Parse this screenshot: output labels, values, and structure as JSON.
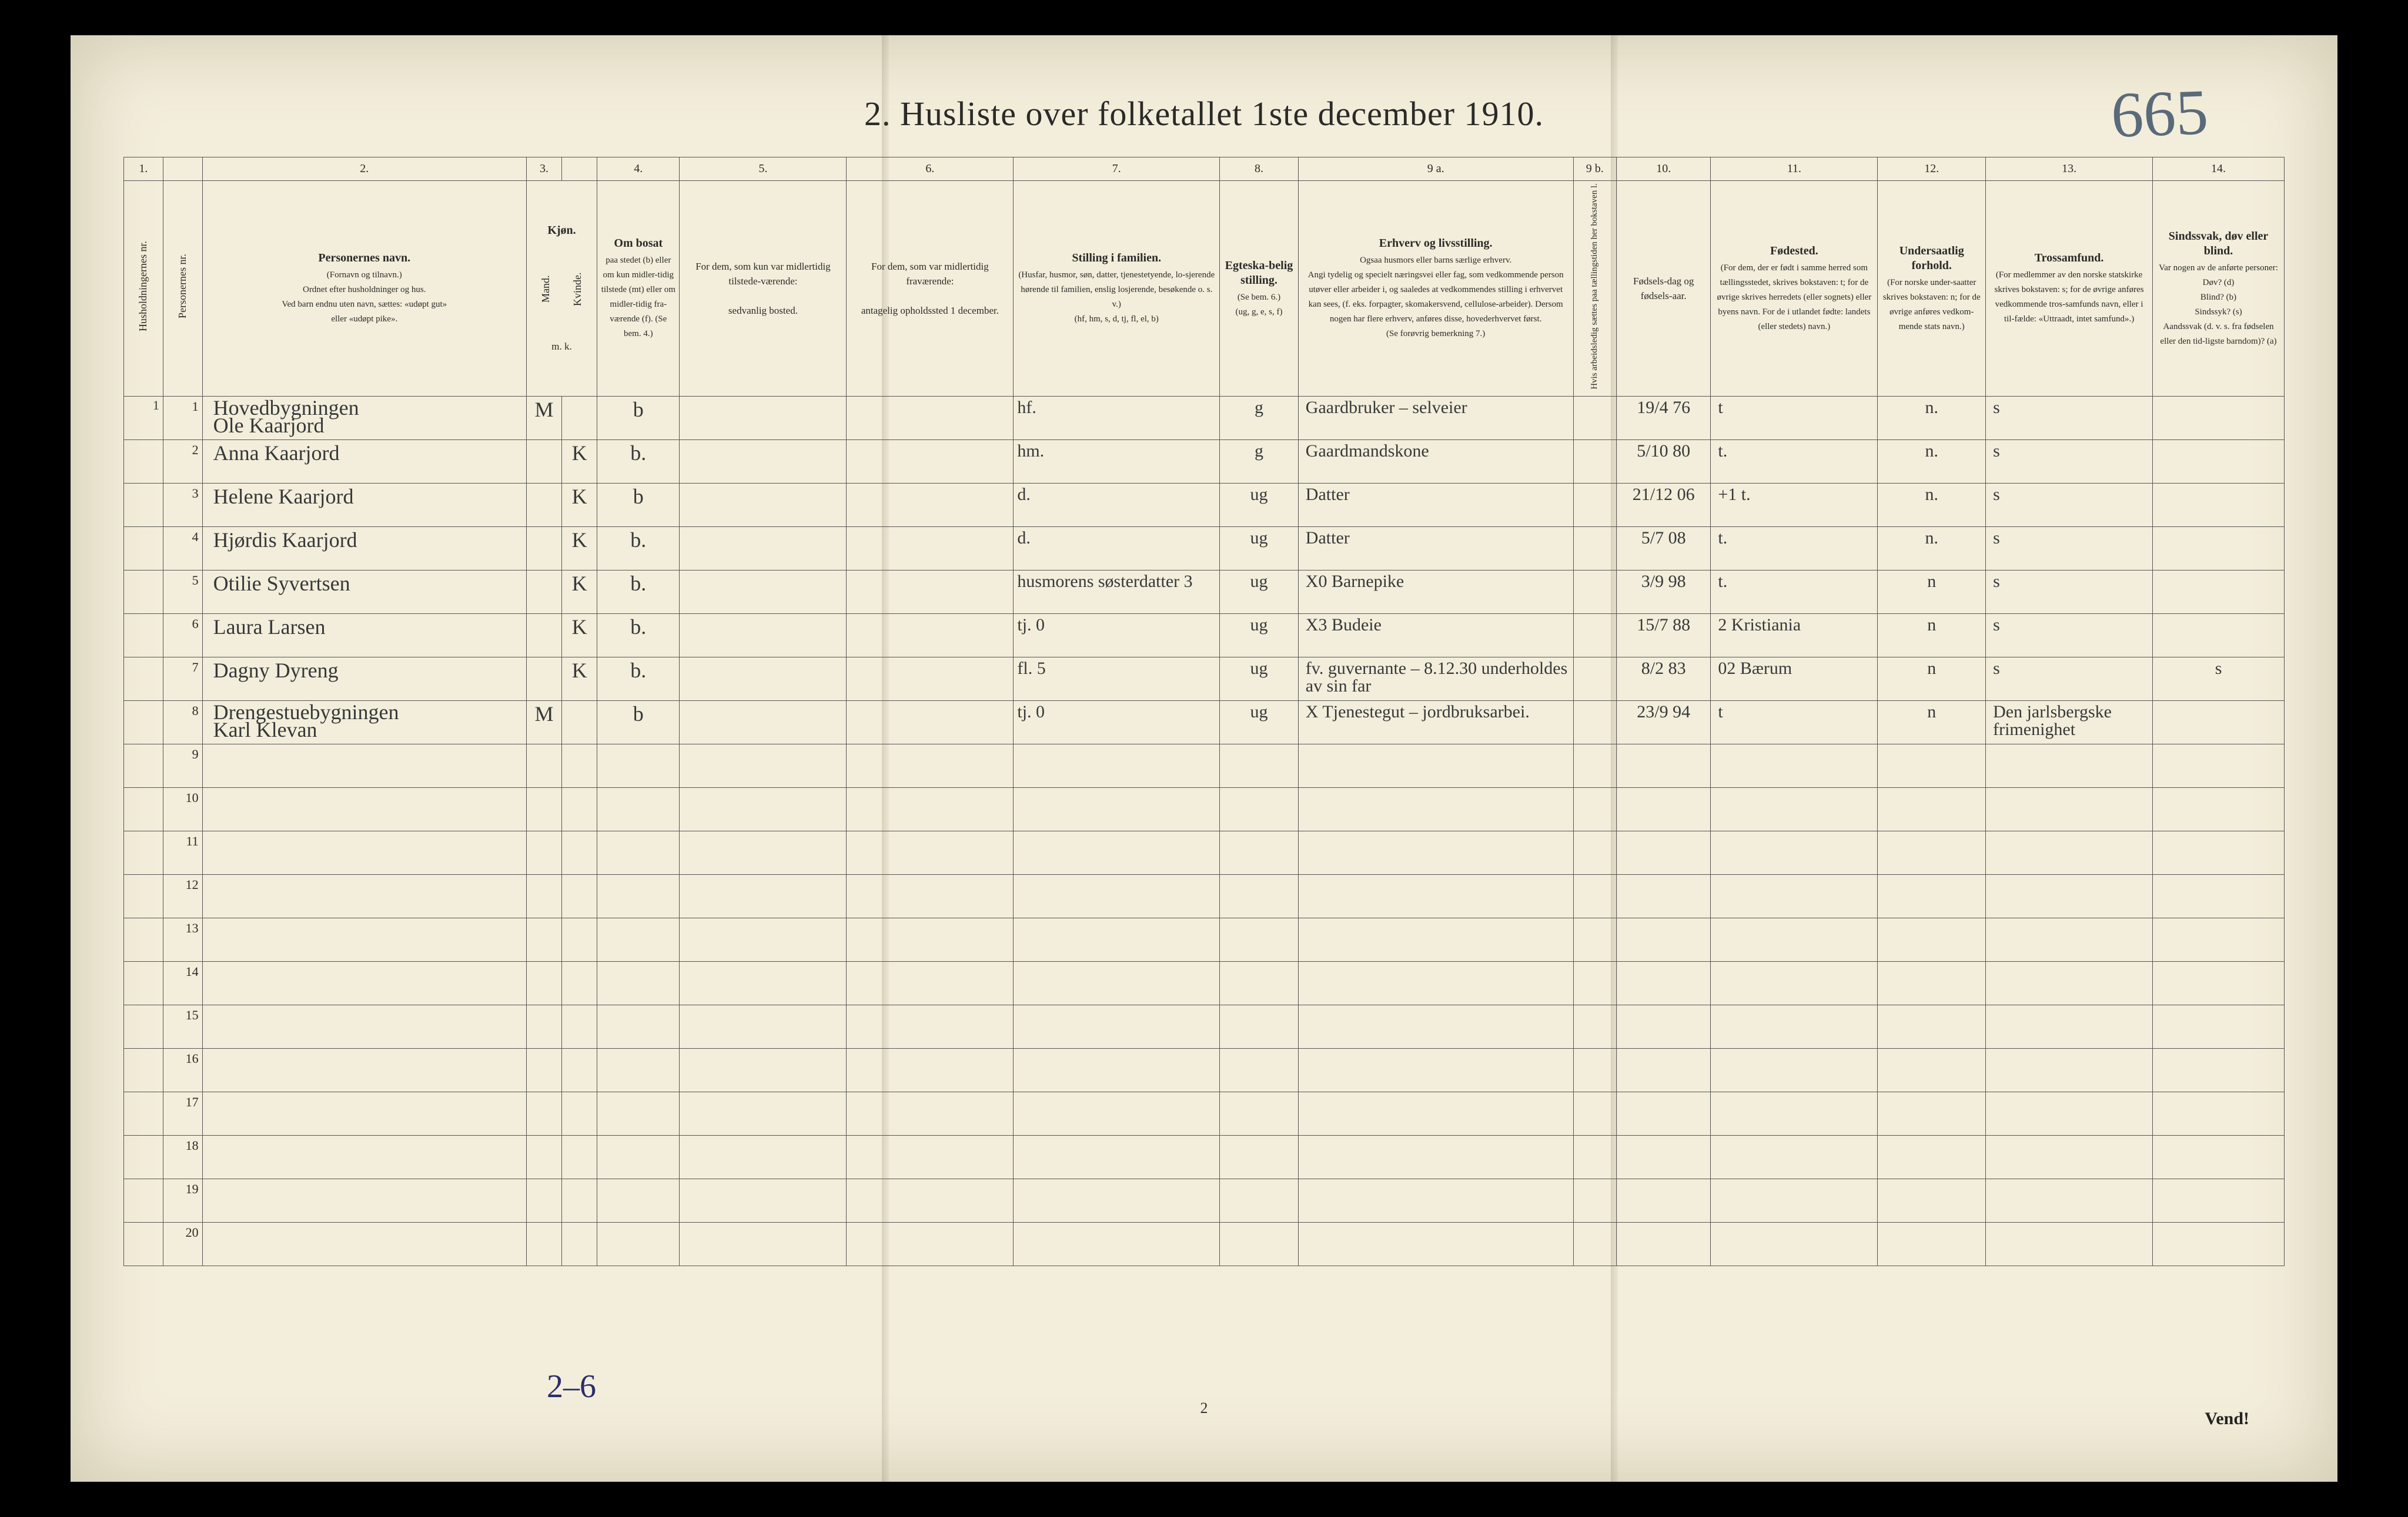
{
  "page": {
    "title": "2.  Husliste over folketallet 1ste december 1910.",
    "hand_page_number": "665",
    "footer_handnote": "2–6",
    "footer_printed_page": "2",
    "vend": "Vend!"
  },
  "colors": {
    "paper": "#f3eedb",
    "ink": "#2a2a28",
    "rule": "#555",
    "handwriting": "#36393a",
    "blue_ink": "#2a2d6a",
    "pencil": "#5a6a7a",
    "background": "#000000"
  },
  "columns": {
    "widths_pct": [
      2.0,
      2.0,
      16.5,
      1.8,
      1.8,
      4.2,
      8.5,
      8.5,
      10.5,
      4.0,
      14.0,
      2.2,
      4.8,
      8.5,
      5.5,
      8.5,
      6.7
    ],
    "numbers": [
      "1.",
      "",
      "2.",
      "3.",
      "",
      "4.",
      "5.",
      "6.",
      "7.",
      "8.",
      "9 a.",
      "9 b.",
      "10.",
      "11.",
      "12.",
      "13.",
      "14."
    ],
    "head_hush": "Husholdningernes nr.",
    "head_pers": "Personernes nr.",
    "head_name_title": "Personernes navn.",
    "head_name_body": "(Fornavn og tilnavn.)\nOrdnet efter husholdninger og hus.\nVed barn endnu uten navn, sættes: «udøpt gut»\neller «udøpt pike».",
    "head_kjon": "Kjøn.",
    "head_kjon_m": "Mand.",
    "head_kjon_k": "Kvinde.",
    "head_kjon_mk": "m.  k.",
    "head_bosat_title": "Om bosat",
    "head_bosat_body": "paa stedet (b) eller om kun midler-tidig tilstede (mt) eller om midler-tidig fra-værende (f). (Se bem. 4.)",
    "head_col5_title": "For dem, som kun var midlertidig tilstede-værende:",
    "head_col5_body": "sedvanlig bosted.",
    "head_col6_title": "For dem, som var midlertidig fraværende:",
    "head_col6_body": "antagelig opholdssted 1 december.",
    "head_col7_title": "Stilling i familien.",
    "head_col7_body": "(Husfar, husmor, søn, datter, tjenestetyende, lo-sjerende hørende til familien, enslig losjerende, besøkende o. s. v.)\n(hf, hm, s, d, tj, fl, el, b)",
    "head_col8_title": "Egteska-belig stilling.",
    "head_col8_body": "(Se bem. 6.)\n(ug, g, e, s, f)",
    "head_col9a_title": "Erhverv og livsstilling.",
    "head_col9a_body": "Ogsaa husmors eller barns særlige erhverv.\nAngi tydelig og specielt næringsvei eller fag, som vedkommende person utøver eller arbeider i, og saaledes at vedkommendes stilling i erhvervet kan sees, (f. eks. forpagter, skomakersvend, cellulose-arbeider). Dersom nogen har flere erhverv, anføres disse, hovederhvervet først.\n(Se forøvrig bemerkning 7.)",
    "head_col9b": "Hvis arbeidsledig sættes paa tællingstiden her bokstaven l.",
    "head_col10_title": "Fødsels-dag og fødsels-aar.",
    "head_col11_title": "Fødested.",
    "head_col11_body": "(For dem, der er født i samme herred som tællingsstedet, skrives bokstaven: t; for de øvrige skrives herredets (eller sognets) eller byens navn. For de i utlandet fødte: landets (eller stedets) navn.)",
    "head_col12_title": "Undersaatlig forhold.",
    "head_col12_body": "(For norske under-saatter skrives bokstaven: n; for de øvrige anføres vedkom-mende stats navn.)",
    "head_col13_title": "Trossamfund.",
    "head_col13_body": "(For medlemmer av den norske statskirke skrives bokstaven: s; for de øvrige anføres vedkommende tros-samfunds navn, eller i til-fælde: «Uttraadt, intet samfund».)",
    "head_col14_title": "Sindssvak, døv eller blind.",
    "head_col14_body": "Var nogen av de anførte personer:\nDøv?        (d)\nBlind?      (b)\nSindssyk? (s)\nAandssvak (d. v. s. fra fødselen eller den tid-ligste barndom)? (a)"
  },
  "rows": [
    {
      "hush": "1",
      "pers": "1",
      "pre": "Hovedbygningen",
      "name": "Ole Kaarjord",
      "sex": "M",
      "bosat": "b",
      "c5": "",
      "c6": "",
      "c7": "hf.",
      "c8": "g",
      "c9a": "Gaardbruker – selveier",
      "c9b": "",
      "c10": "19/4 76",
      "c11": "t",
      "c12": "n.",
      "c13": "s",
      "c14": ""
    },
    {
      "hush": "",
      "pers": "2",
      "name": "Anna Kaarjord",
      "sex": "K",
      "bosat": "b.",
      "c5": "",
      "c6": "",
      "c7": "hm.",
      "c8": "g",
      "c9a": "Gaardmandskone",
      "c9b": "",
      "c10": "5/10 80",
      "c11": "t.",
      "c12": "n.",
      "c13": "s",
      "c14": ""
    },
    {
      "hush": "",
      "pers": "3",
      "name": "Helene Kaarjord",
      "sex": "K",
      "bosat": "b",
      "c5": "",
      "c6": "",
      "c7": "d.",
      "c8": "ug",
      "c9a": "Datter",
      "c9b": "",
      "c10": "21/12 06",
      "c11": "+1  t.",
      "c12": "n.",
      "c13": "s",
      "c14": ""
    },
    {
      "hush": "",
      "pers": "4",
      "name": "Hjørdis Kaarjord",
      "sex": "K",
      "bosat": "b.",
      "c5": "",
      "c6": "",
      "c7": "d.",
      "c8": "ug",
      "c9a": "Datter",
      "c9b": "",
      "c10": "5/7 08",
      "c11": "t.",
      "c12": "n.",
      "c13": "s",
      "c14": ""
    },
    {
      "hush": "",
      "pers": "5",
      "name": "Otilie Syvertsen",
      "sex": "K",
      "bosat": "b.",
      "c5": "",
      "c6": "",
      "c7": "husmorens søsterdatter 3",
      "c8": "ug",
      "c9a": "X0  Barnepike",
      "c9b": "",
      "c10": "3/9 98",
      "c11": "t.",
      "c12": "n",
      "c13": "s",
      "c14": ""
    },
    {
      "hush": "",
      "pers": "6",
      "name": "Laura Larsen",
      "sex": "K",
      "bosat": "b.",
      "c5": "",
      "c6": "",
      "c7": "tj.      0",
      "c8": "ug",
      "c9a": "X3  Budeie",
      "c9b": "",
      "c10": "15/7 88",
      "c11": "2 Kristiania",
      "c12": "n",
      "c13": "s",
      "c14": ""
    },
    {
      "hush": "",
      "pers": "7",
      "name": "Dagny Dyreng",
      "sex": "K",
      "bosat": "b.",
      "c5": "",
      "c6": "",
      "c7": "fl.      5",
      "c8": "ug",
      "c9a": "fv. guvernante – 8.12.30 underholdes av sin far",
      "c9b": "",
      "c10": "8/2 83",
      "c11": "02 Bærum",
      "c12": "n",
      "c13": "s",
      "c14": "s"
    },
    {
      "hush": "",
      "pers": "8",
      "pre": "Drengestuebygningen",
      "name": "Karl Klevan",
      "sex": "M",
      "bosat": "b",
      "c5": "",
      "c6": "",
      "c7": "tj.      0",
      "c8": "ug",
      "c9a": "X Tjenestegut – jordbruksarbei.",
      "c9b": "",
      "c10": "23/9 94",
      "c11": "t",
      "c12": "n",
      "c13": "Den jarlsbergske frimenighet",
      "c14": ""
    },
    {
      "pers": "9"
    },
    {
      "pers": "10"
    },
    {
      "pers": "11"
    },
    {
      "pers": "12"
    },
    {
      "pers": "13"
    },
    {
      "pers": "14"
    },
    {
      "pers": "15"
    },
    {
      "pers": "16"
    },
    {
      "pers": "17"
    },
    {
      "pers": "18"
    },
    {
      "pers": "19"
    },
    {
      "pers": "20"
    }
  ]
}
